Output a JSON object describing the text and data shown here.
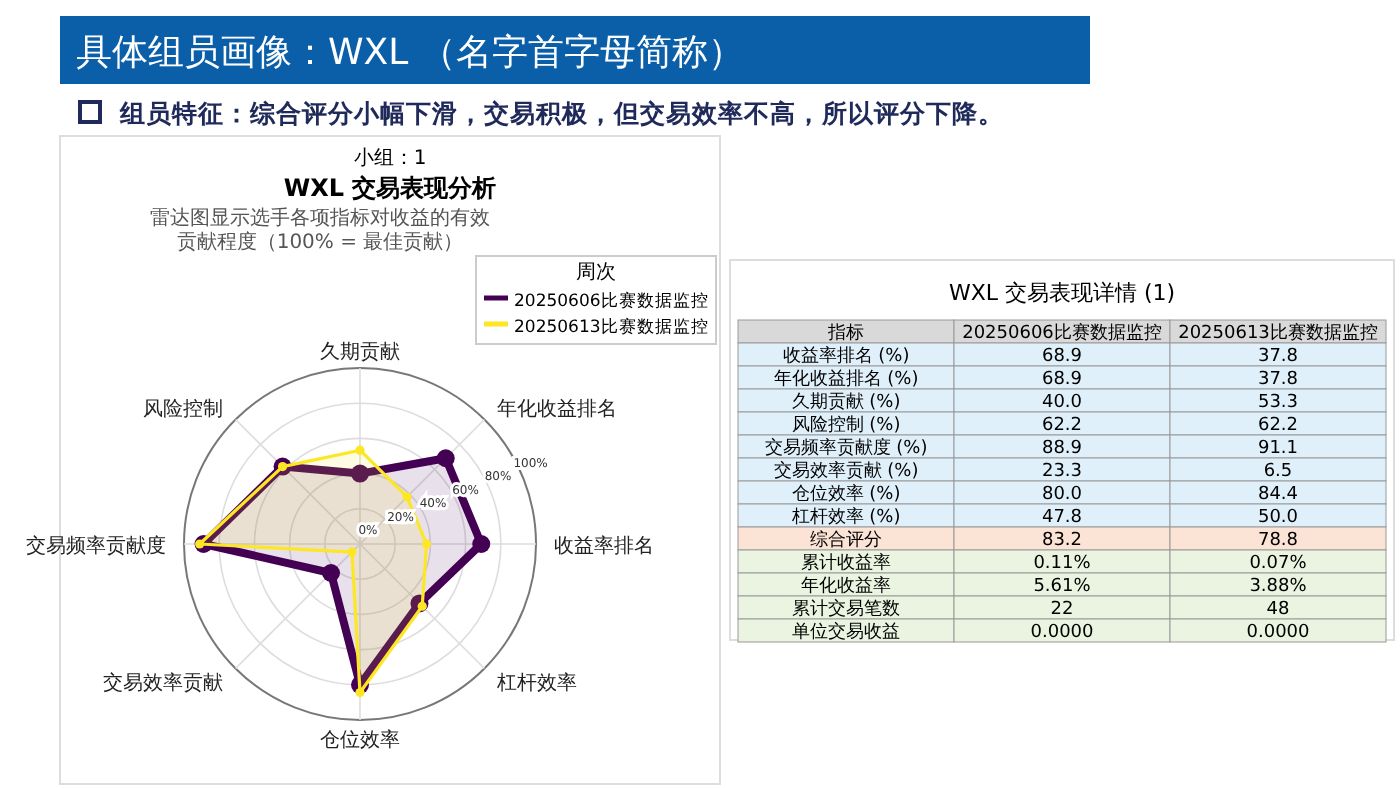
{
  "chart_data": [
    {
      "type": "other",
      "title": "具体组员画像：WXL （名字首字母简称）",
      "subtitle": "组员特征：综合评分小幅下滑，交易积极，但交易效率不高，所以评分下降。"
    },
    {
      "type": "radar",
      "title": "WXL 交易表现分析",
      "subtitle": "雷达图显示选手各项指标对收益的有效贡献程度（100% = 最佳贡献）",
      "annotations": [
        "小组：1"
      ],
      "legend_title": "周次",
      "legend": "top right",
      "marker": "circle",
      "grid": true,
      "categories": [
        "久期贡献",
        "年化收益排名",
        "收益率排名",
        "杠杆效率",
        "仓位效率",
        "交易效率贡献",
        "交易频率贡献度",
        "风险控制"
      ],
      "ylim": [
        0,
        100
      ],
      "yticks": [
        {
          "value": 0,
          "label": "0%"
        },
        {
          "value": 20,
          "label": "20%"
        },
        {
          "value": 40,
          "label": "40%"
        },
        {
          "value": 60,
          "label": "60%"
        },
        {
          "value": 80,
          "label": "80%"
        },
        {
          "value": 100,
          "label": "100%"
        }
      ],
      "series": [
        {
          "name": "20250606比赛数据监控",
          "color": "#440154",
          "values": [
            40.0,
            68.9,
            68.9,
            47.8,
            80.0,
            23.3,
            88.9,
            62.2
          ]
        },
        {
          "name": "20250613比赛数据监控",
          "color": "#fde725",
          "values": [
            53.3,
            37.8,
            37.8,
            50.0,
            84.4,
            6.5,
            91.1,
            62.2
          ]
        }
      ]
    },
    {
      "type": "other",
      "title": "WXL 交易表现详情 (1)",
      "categories": [
        "指标",
        "20250606比赛数据监控",
        "20250613比赛数据监控"
      ],
      "cell_labels": [
        [
          "收益率排名 (%)",
          "68.9",
          "37.8"
        ],
        [
          "年化收益排名 (%)",
          "68.9",
          "37.8"
        ],
        [
          "久期贡献 (%)",
          "40.0",
          "53.3"
        ],
        [
          "风险控制 (%)",
          "62.2",
          "62.2"
        ],
        [
          "交易频率贡献度 (%)",
          "88.9",
          "91.1"
        ],
        [
          "交易效率贡献 (%)",
          "23.3",
          "6.5"
        ],
        [
          "仓位效率 (%)",
          "80.0",
          "84.4"
        ],
        [
          "杠杆效率 (%)",
          "47.8",
          "50.0"
        ],
        [
          "综合评分",
          "83.2",
          "78.8"
        ],
        [
          "累计收益率",
          "0.11%",
          "0.07%"
        ],
        [
          "年化收益率",
          "5.61%",
          "3.88%"
        ],
        [
          "累计交易笔数",
          "22",
          "48"
        ],
        [
          "单位交易收益",
          "0.0000",
          "0.0000"
        ]
      ]
    }
  ]
}
